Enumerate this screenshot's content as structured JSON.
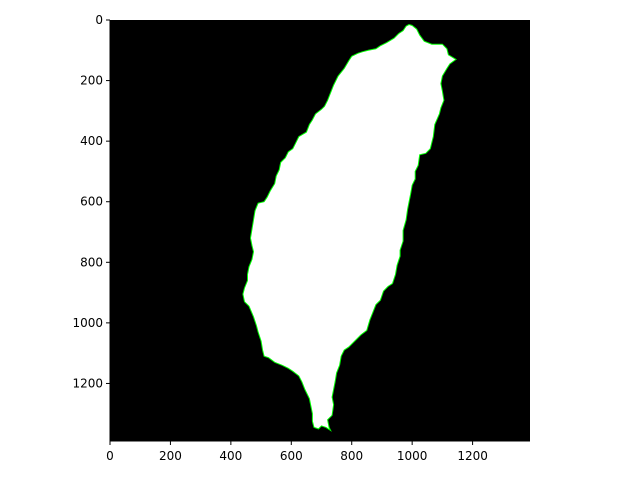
{
  "chart_data": {
    "type": "image",
    "title": "",
    "xlabel": "",
    "ylabel": "",
    "image_size": [
      1390,
      1390
    ],
    "xlim": [
      0,
      1390
    ],
    "ylim": [
      1390,
      0
    ],
    "x_ticks": [
      0,
      200,
      400,
      600,
      800,
      1000,
      1200
    ],
    "y_ticks": [
      0,
      200,
      400,
      600,
      800,
      1000,
      1200
    ],
    "x_tick_labels": [
      "0",
      "200",
      "400",
      "600",
      "800",
      "1000",
      "1200"
    ],
    "y_tick_labels": [
      "0",
      "200",
      "400",
      "600",
      "800",
      "1000",
      "1200"
    ],
    "colors": {
      "background": "#000000",
      "shape_fill": "#ffffff",
      "contour": "#00ff00",
      "axes": "#000000"
    },
    "shape_outline": [
      [
        990,
        15
      ],
      [
        1000,
        18
      ],
      [
        1015,
        30
      ],
      [
        1025,
        50
      ],
      [
        1040,
        70
      ],
      [
        1065,
        80
      ],
      [
        1100,
        80
      ],
      [
        1115,
        95
      ],
      [
        1120,
        115
      ],
      [
        1145,
        130
      ],
      [
        1125,
        145
      ],
      [
        1115,
        160
      ],
      [
        1100,
        185
      ],
      [
        1095,
        210
      ],
      [
        1100,
        235
      ],
      [
        1105,
        265
      ],
      [
        1095,
        290
      ],
      [
        1090,
        310
      ],
      [
        1075,
        345
      ],
      [
        1070,
        385
      ],
      [
        1060,
        425
      ],
      [
        1045,
        440
      ],
      [
        1025,
        445
      ],
      [
        1020,
        480
      ],
      [
        1010,
        500
      ],
      [
        1010,
        525
      ],
      [
        1000,
        545
      ],
      [
        995,
        575
      ],
      [
        990,
        600
      ],
      [
        985,
        625
      ],
      [
        980,
        660
      ],
      [
        970,
        695
      ],
      [
        970,
        730
      ],
      [
        960,
        760
      ],
      [
        960,
        780
      ],
      [
        950,
        810
      ],
      [
        945,
        840
      ],
      [
        935,
        870
      ],
      [
        920,
        880
      ],
      [
        905,
        895
      ],
      [
        895,
        925
      ],
      [
        880,
        940
      ],
      [
        870,
        965
      ],
      [
        860,
        990
      ],
      [
        850,
        1025
      ],
      [
        830,
        1040
      ],
      [
        810,
        1060
      ],
      [
        790,
        1080
      ],
      [
        775,
        1090
      ],
      [
        765,
        1110
      ],
      [
        760,
        1140
      ],
      [
        750,
        1165
      ],
      [
        745,
        1195
      ],
      [
        740,
        1220
      ],
      [
        735,
        1245
      ],
      [
        740,
        1270
      ],
      [
        735,
        1305
      ],
      [
        720,
        1320
      ],
      [
        725,
        1345
      ],
      [
        730,
        1355
      ],
      [
        715,
        1345
      ],
      [
        700,
        1340
      ],
      [
        690,
        1350
      ],
      [
        675,
        1345
      ],
      [
        670,
        1325
      ],
      [
        670,
        1300
      ],
      [
        665,
        1275
      ],
      [
        660,
        1250
      ],
      [
        645,
        1220
      ],
      [
        635,
        1195
      ],
      [
        625,
        1175
      ],
      [
        605,
        1160
      ],
      [
        590,
        1150
      ],
      [
        570,
        1140
      ],
      [
        545,
        1130
      ],
      [
        525,
        1115
      ],
      [
        510,
        1110
      ],
      [
        505,
        1090
      ],
      [
        500,
        1060
      ],
      [
        490,
        1030
      ],
      [
        485,
        1010
      ],
      [
        475,
        980
      ],
      [
        460,
        945
      ],
      [
        445,
        930
      ],
      [
        440,
        905
      ],
      [
        445,
        885
      ],
      [
        455,
        860
      ],
      [
        455,
        840
      ],
      [
        460,
        815
      ],
      [
        470,
        790
      ],
      [
        475,
        765
      ],
      [
        470,
        745
      ],
      [
        465,
        720
      ],
      [
        470,
        690
      ],
      [
        475,
        660
      ],
      [
        480,
        630
      ],
      [
        490,
        605
      ],
      [
        510,
        600
      ],
      [
        520,
        585
      ],
      [
        530,
        565
      ],
      [
        545,
        540
      ],
      [
        550,
        515
      ],
      [
        560,
        495
      ],
      [
        565,
        470
      ],
      [
        580,
        455
      ],
      [
        590,
        435
      ],
      [
        605,
        425
      ],
      [
        615,
        405
      ],
      [
        625,
        385
      ],
      [
        650,
        370
      ],
      [
        660,
        345
      ],
      [
        670,
        330
      ],
      [
        680,
        310
      ],
      [
        700,
        295
      ],
      [
        710,
        285
      ],
      [
        720,
        265
      ],
      [
        730,
        240
      ],
      [
        740,
        215
      ],
      [
        755,
        185
      ],
      [
        775,
        160
      ],
      [
        790,
        135
      ],
      [
        800,
        120
      ],
      [
        820,
        110
      ],
      [
        835,
        105
      ],
      [
        855,
        100
      ],
      [
        880,
        95
      ],
      [
        895,
        85
      ],
      [
        915,
        75
      ],
      [
        940,
        60
      ],
      [
        955,
        45
      ],
      [
        970,
        35
      ],
      [
        980,
        20
      ]
    ]
  }
}
